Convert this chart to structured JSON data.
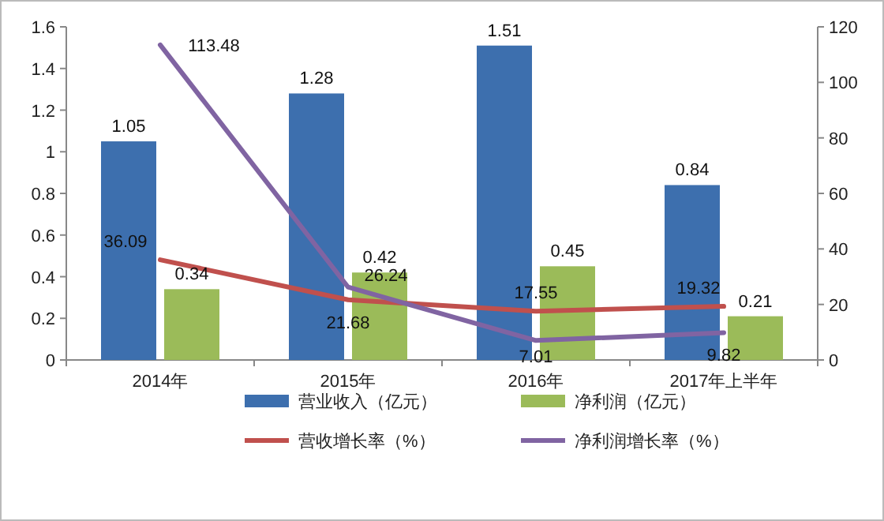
{
  "chart_data": {
    "type": "bar",
    "categories": [
      "2014年",
      "2015年",
      "2016年",
      "2017年上半年"
    ],
    "series": [
      {
        "name": "营业收入（亿元）",
        "color": "#3d6fae",
        "values": [
          1.05,
          1.28,
          1.51,
          0.84
        ]
      },
      {
        "name": "净利润（亿元）",
        "color": "#9bbb59",
        "values": [
          0.34,
          0.42,
          0.45,
          0.21
        ]
      },
      {
        "name": "营收增长率（%）",
        "type": "line",
        "axis": "y2",
        "color": "#c0504d",
        "values": [
          36.09,
          21.68,
          17.55,
          19.32
        ]
      },
      {
        "name": "净利润增长率（%）",
        "type": "line",
        "axis": "y2",
        "color": "#8064a2",
        "values": [
          113.48,
          26.24,
          7.01,
          9.82
        ]
      }
    ],
    "ylim": [
      0,
      1.6
    ],
    "yticks": [
      0,
      0.2,
      0.4,
      0.6,
      0.8,
      1,
      1.2,
      1.4,
      1.6
    ],
    "y2lim": [
      0,
      120
    ],
    "y2ticks": [
      0,
      20,
      40,
      60,
      80,
      100,
      120
    ],
    "data_labels": true,
    "legend": "bottom",
    "grid": false
  }
}
